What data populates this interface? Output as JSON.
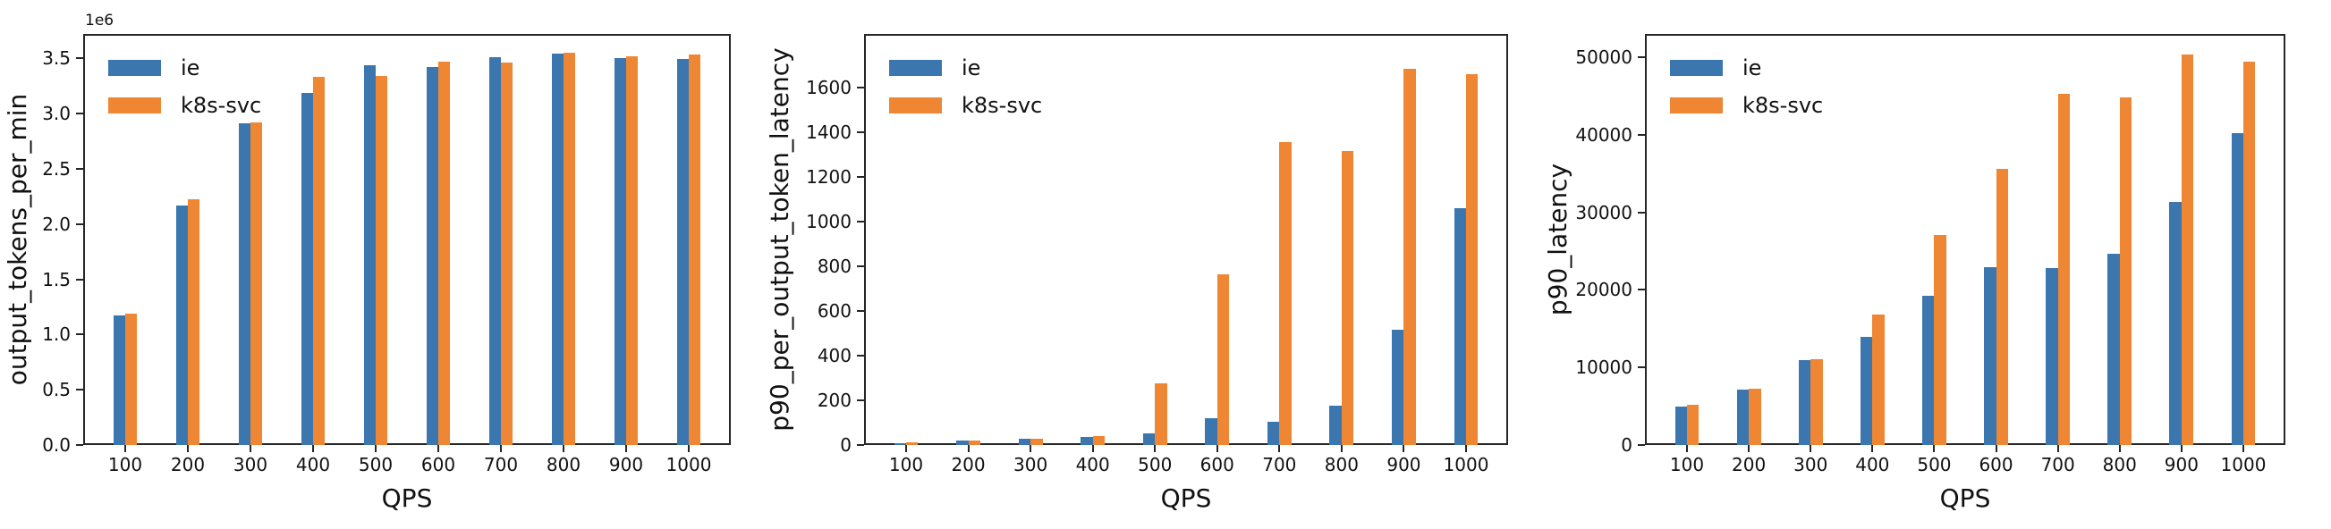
{
  "colors": {
    "ie": "#3b76af",
    "k8s_svc": "#ee8634",
    "axis": "#262626",
    "text": "#111111",
    "background": "#ffffff"
  },
  "chart_data": [
    {
      "type": "bar",
      "ylabel": "output_tokens_per_min",
      "xlabel": "QPS",
      "offset_text": "1e6",
      "grid": false,
      "legend_position": "upper left",
      "legend": [
        "ie",
        "k8s-svc"
      ],
      "categories": [
        "100",
        "200",
        "300",
        "400",
        "500",
        "600",
        "700",
        "800",
        "900",
        "1000"
      ],
      "ylim": [
        0,
        3720000
      ],
      "ytick_labels": [
        "0.0",
        "0.5",
        "1.0",
        "1.5",
        "2.0",
        "2.5",
        "3.0",
        "3.5"
      ],
      "ytick_values": [
        0,
        500000,
        1000000,
        1500000,
        2000000,
        2500000,
        3000000,
        3500000
      ],
      "series": [
        {
          "name": "ie",
          "values": [
            1170000,
            2170000,
            2910000,
            3190000,
            3440000,
            3420000,
            3510000,
            3540000,
            3500000,
            3490000
          ]
        },
        {
          "name": "k8s-svc",
          "values": [
            1190000,
            2220000,
            2920000,
            3330000,
            3340000,
            3470000,
            3460000,
            3550000,
            3520000,
            3530000
          ]
        }
      ]
    },
    {
      "type": "bar",
      "ylabel": "p90_per_output_token_latency",
      "xlabel": "QPS",
      "offset_text": "",
      "grid": false,
      "legend_position": "upper left",
      "legend": [
        "ie",
        "k8s-svc"
      ],
      "categories": [
        "100",
        "200",
        "300",
        "400",
        "500",
        "600",
        "700",
        "800",
        "900",
        "1000"
      ],
      "ylim": [
        0,
        1840
      ],
      "ytick_labels": [
        "0",
        "200",
        "400",
        "600",
        "800",
        "1000",
        "1200",
        "1400",
        "1600"
      ],
      "ytick_values": [
        0,
        200,
        400,
        600,
        800,
        1000,
        1200,
        1400,
        1600
      ],
      "series": [
        {
          "name": "ie",
          "values": [
            9,
            21,
            29,
            36,
            51,
            120,
            105,
            178,
            515,
            1060
          ]
        },
        {
          "name": "k8s-svc",
          "values": [
            11,
            21,
            29,
            40,
            277,
            765,
            1355,
            1315,
            1685,
            1660
          ]
        }
      ]
    },
    {
      "type": "bar",
      "ylabel": "p90_latency",
      "xlabel": "QPS",
      "offset_text": "",
      "grid": false,
      "legend_position": "upper left",
      "legend": [
        "ie",
        "k8s-svc"
      ],
      "categories": [
        "100",
        "200",
        "300",
        "400",
        "500",
        "600",
        "700",
        "800",
        "900",
        "1000"
      ],
      "ylim": [
        0,
        53000
      ],
      "ytick_labels": [
        "0",
        "10000",
        "20000",
        "30000",
        "40000",
        "50000"
      ],
      "ytick_values": [
        0,
        10000,
        20000,
        30000,
        40000,
        50000
      ],
      "series": [
        {
          "name": "ie",
          "values": [
            5000,
            7100,
            10900,
            13900,
            19200,
            22900,
            22800,
            24700,
            31300,
            40200
          ]
        },
        {
          "name": "k8s-svc",
          "values": [
            5200,
            7300,
            11100,
            16800,
            27100,
            35600,
            45300,
            44800,
            50300,
            49400
          ]
        }
      ]
    }
  ]
}
